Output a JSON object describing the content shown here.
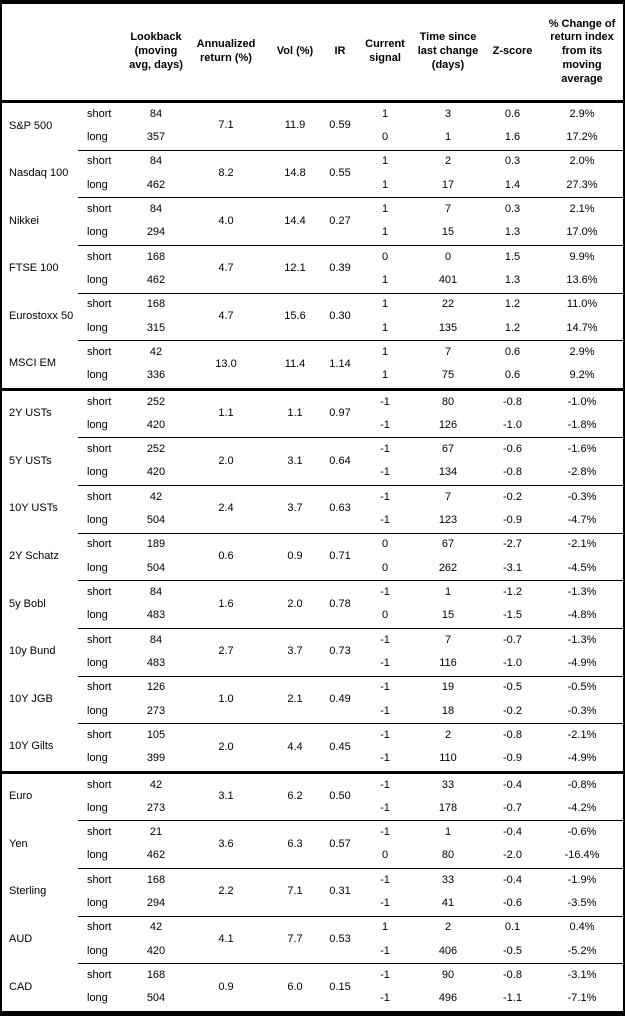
{
  "table": {
    "header": {
      "asset": "",
      "leg": "",
      "lookback": "Lookback (moving avg, days)",
      "ann_return": "Annualized return (%)",
      "vol": "Vol (%)",
      "ir": "IR",
      "signal": "Current signal",
      "time": "Time since last change (days)",
      "zscore": "Z-score",
      "pct_change": "% Change of return index from its moving average"
    },
    "sections": [
      {
        "groups": [
          {
            "asset": "S&P 500",
            "ann_return": "7.1",
            "vol": "11.9",
            "ir": "0.59",
            "rows": [
              {
                "leg": "short",
                "lookback": "84",
                "signal": "1",
                "time": "3",
                "z": "0.6",
                "pct": "2.9%"
              },
              {
                "leg": "long",
                "lookback": "357",
                "signal": "0",
                "time": "1",
                "z": "1.6",
                "pct": "17.2%"
              }
            ]
          },
          {
            "asset": "Nasdaq 100",
            "ann_return": "8.2",
            "vol": "14.8",
            "ir": "0.55",
            "rows": [
              {
                "leg": "short",
                "lookback": "84",
                "signal": "1",
                "time": "2",
                "z": "0.3",
                "pct": "2.0%"
              },
              {
                "leg": "long",
                "lookback": "462",
                "signal": "1",
                "time": "17",
                "z": "1.4",
                "pct": "27.3%"
              }
            ]
          },
          {
            "asset": "Nikkei",
            "ann_return": "4.0",
            "vol": "14.4",
            "ir": "0.27",
            "rows": [
              {
                "leg": "short",
                "lookback": "84",
                "signal": "1",
                "time": "7",
                "z": "0.3",
                "pct": "2.1%"
              },
              {
                "leg": "long",
                "lookback": "294",
                "signal": "1",
                "time": "15",
                "z": "1.3",
                "pct": "17.0%"
              }
            ]
          },
          {
            "asset": "FTSE 100",
            "ann_return": "4.7",
            "vol": "12.1",
            "ir": "0.39",
            "rows": [
              {
                "leg": "short",
                "lookback": "168",
                "signal": "0",
                "time": "0",
                "z": "1.5",
                "pct": "9.9%"
              },
              {
                "leg": "long",
                "lookback": "462",
                "signal": "1",
                "time": "401",
                "z": "1.3",
                "pct": "13.6%"
              }
            ]
          },
          {
            "asset": "Eurostoxx 50",
            "ann_return": "4.7",
            "vol": "15.6",
            "ir": "0.30",
            "rows": [
              {
                "leg": "short",
                "lookback": "168",
                "signal": "1",
                "time": "22",
                "z": "1.2",
                "pct": "11.0%"
              },
              {
                "leg": "long",
                "lookback": "315",
                "signal": "1",
                "time": "135",
                "z": "1.2",
                "pct": "14.7%"
              }
            ]
          },
          {
            "asset": "MSCI EM",
            "ann_return": "13.0",
            "vol": "11.4",
            "ir": "1.14",
            "rows": [
              {
                "leg": "short",
                "lookback": "42",
                "signal": "1",
                "time": "7",
                "z": "0.6",
                "pct": "2.9%"
              },
              {
                "leg": "long",
                "lookback": "336",
                "signal": "1",
                "time": "75",
                "z": "0.6",
                "pct": "9.2%"
              }
            ]
          }
        ]
      },
      {
        "groups": [
          {
            "asset": "2Y USTs",
            "ann_return": "1.1",
            "vol": "1.1",
            "ir": "0.97",
            "rows": [
              {
                "leg": "short",
                "lookback": "252",
                "signal": "-1",
                "time": "80",
                "z": "-0.8",
                "pct": "-1.0%"
              },
              {
                "leg": "long",
                "lookback": "420",
                "signal": "-1",
                "time": "126",
                "z": "-1.0",
                "pct": "-1.8%"
              }
            ]
          },
          {
            "asset": "5Y USTs",
            "ann_return": "2.0",
            "vol": "3.1",
            "ir": "0.64",
            "rows": [
              {
                "leg": "short",
                "lookback": "252",
                "signal": "-1",
                "time": "67",
                "z": "-0.6",
                "pct": "-1.6%"
              },
              {
                "leg": "long",
                "lookback": "420",
                "signal": "-1",
                "time": "134",
                "z": "-0.8",
                "pct": "-2.8%"
              }
            ]
          },
          {
            "asset": "10Y USTs",
            "ann_return": "2.4",
            "vol": "3.7",
            "ir": "0.63",
            "rows": [
              {
                "leg": "short",
                "lookback": "42",
                "signal": "-1",
                "time": "7",
                "z": "-0.2",
                "pct": "-0.3%"
              },
              {
                "leg": "long",
                "lookback": "504",
                "signal": "-1",
                "time": "123",
                "z": "-0.9",
                "pct": "-4.7%"
              }
            ]
          },
          {
            "asset": "2Y Schatz",
            "ann_return": "0.6",
            "vol": "0.9",
            "ir": "0.71",
            "rows": [
              {
                "leg": "short",
                "lookback": "189",
                "signal": "0",
                "time": "67",
                "z": "-2.7",
                "pct": "-2.1%"
              },
              {
                "leg": "long",
                "lookback": "504",
                "signal": "0",
                "time": "262",
                "z": "-3.1",
                "pct": "-4.5%"
              }
            ]
          },
          {
            "asset": "5y Bobl",
            "ann_return": "1.6",
            "vol": "2.0",
            "ir": "0.78",
            "rows": [
              {
                "leg": "short",
                "lookback": "84",
                "signal": "-1",
                "time": "1",
                "z": "-1.2",
                "pct": "-1.3%"
              },
              {
                "leg": "long",
                "lookback": "483",
                "signal": "0",
                "time": "15",
                "z": "-1.5",
                "pct": "-4.8%"
              }
            ]
          },
          {
            "asset": "10y Bund",
            "ann_return": "2.7",
            "vol": "3.7",
            "ir": "0.73",
            "rows": [
              {
                "leg": "short",
                "lookback": "84",
                "signal": "-1",
                "time": "7",
                "z": "-0.7",
                "pct": "-1.3%"
              },
              {
                "leg": "long",
                "lookback": "483",
                "signal": "-1",
                "time": "116",
                "z": "-1.0",
                "pct": "-4.9%"
              }
            ]
          },
          {
            "asset": "10Y JGB",
            "ann_return": "1.0",
            "vol": "2.1",
            "ir": "0.49",
            "rows": [
              {
                "leg": "short",
                "lookback": "126",
                "signal": "-1",
                "time": "19",
                "z": "-0.5",
                "pct": "-0.5%"
              },
              {
                "leg": "long",
                "lookback": "273",
                "signal": "-1",
                "time": "18",
                "z": "-0.2",
                "pct": "-0.3%"
              }
            ]
          },
          {
            "asset": "10Y Gilts",
            "ann_return": "2.0",
            "vol": "4.4",
            "ir": "0.45",
            "rows": [
              {
                "leg": "short",
                "lookback": "105",
                "signal": "-1",
                "time": "2",
                "z": "-0.8",
                "pct": "-2.1%"
              },
              {
                "leg": "long",
                "lookback": "399",
                "signal": "-1",
                "time": "110",
                "z": "-0.9",
                "pct": "-4.9%"
              }
            ]
          }
        ]
      },
      {
        "groups": [
          {
            "asset": "Euro",
            "ann_return": "3.1",
            "vol": "6.2",
            "ir": "0.50",
            "rows": [
              {
                "leg": "short",
                "lookback": "42",
                "signal": "-1",
                "time": "33",
                "z": "-0.4",
                "pct": "-0.8%"
              },
              {
                "leg": "long",
                "lookback": "273",
                "signal": "-1",
                "time": "178",
                "z": "-0.7",
                "pct": "-4.2%"
              }
            ]
          },
          {
            "asset": "Yen",
            "ann_return": "3.6",
            "vol": "6.3",
            "ir": "0.57",
            "rows": [
              {
                "leg": "short",
                "lookback": "21",
                "signal": "-1",
                "time": "1",
                "z": "-0.4",
                "pct": "-0.6%"
              },
              {
                "leg": "long",
                "lookback": "462",
                "signal": "0",
                "time": "80",
                "z": "-2.0",
                "pct": "-16.4%"
              }
            ]
          },
          {
            "asset": "Sterling",
            "ann_return": "2.2",
            "vol": "7.1",
            "ir": "0.31",
            "rows": [
              {
                "leg": "short",
                "lookback": "168",
                "signal": "-1",
                "time": "33",
                "z": "-0.4",
                "pct": "-1.9%"
              },
              {
                "leg": "long",
                "lookback": "294",
                "signal": "-1",
                "time": "41",
                "z": "-0.6",
                "pct": "-3.5%"
              }
            ]
          },
          {
            "asset": "AUD",
            "ann_return": "4.1",
            "vol": "7.7",
            "ir": "0.53",
            "rows": [
              {
                "leg": "short",
                "lookback": "42",
                "signal": "1",
                "time": "2",
                "z": "0.1",
                "pct": "0.4%"
              },
              {
                "leg": "long",
                "lookback": "420",
                "signal": "-1",
                "time": "406",
                "z": "-0.5",
                "pct": "-5.2%"
              }
            ]
          },
          {
            "asset": "CAD",
            "ann_return": "0.9",
            "vol": "6.0",
            "ir": "0.15",
            "rows": [
              {
                "leg": "short",
                "lookback": "168",
                "signal": "-1",
                "time": "90",
                "z": "-0.8",
                "pct": "-3.1%"
              },
              {
                "leg": "long",
                "lookback": "504",
                "signal": "-1",
                "time": "496",
                "z": "-1.1",
                "pct": "-7.1%"
              }
            ]
          }
        ]
      }
    ]
  }
}
